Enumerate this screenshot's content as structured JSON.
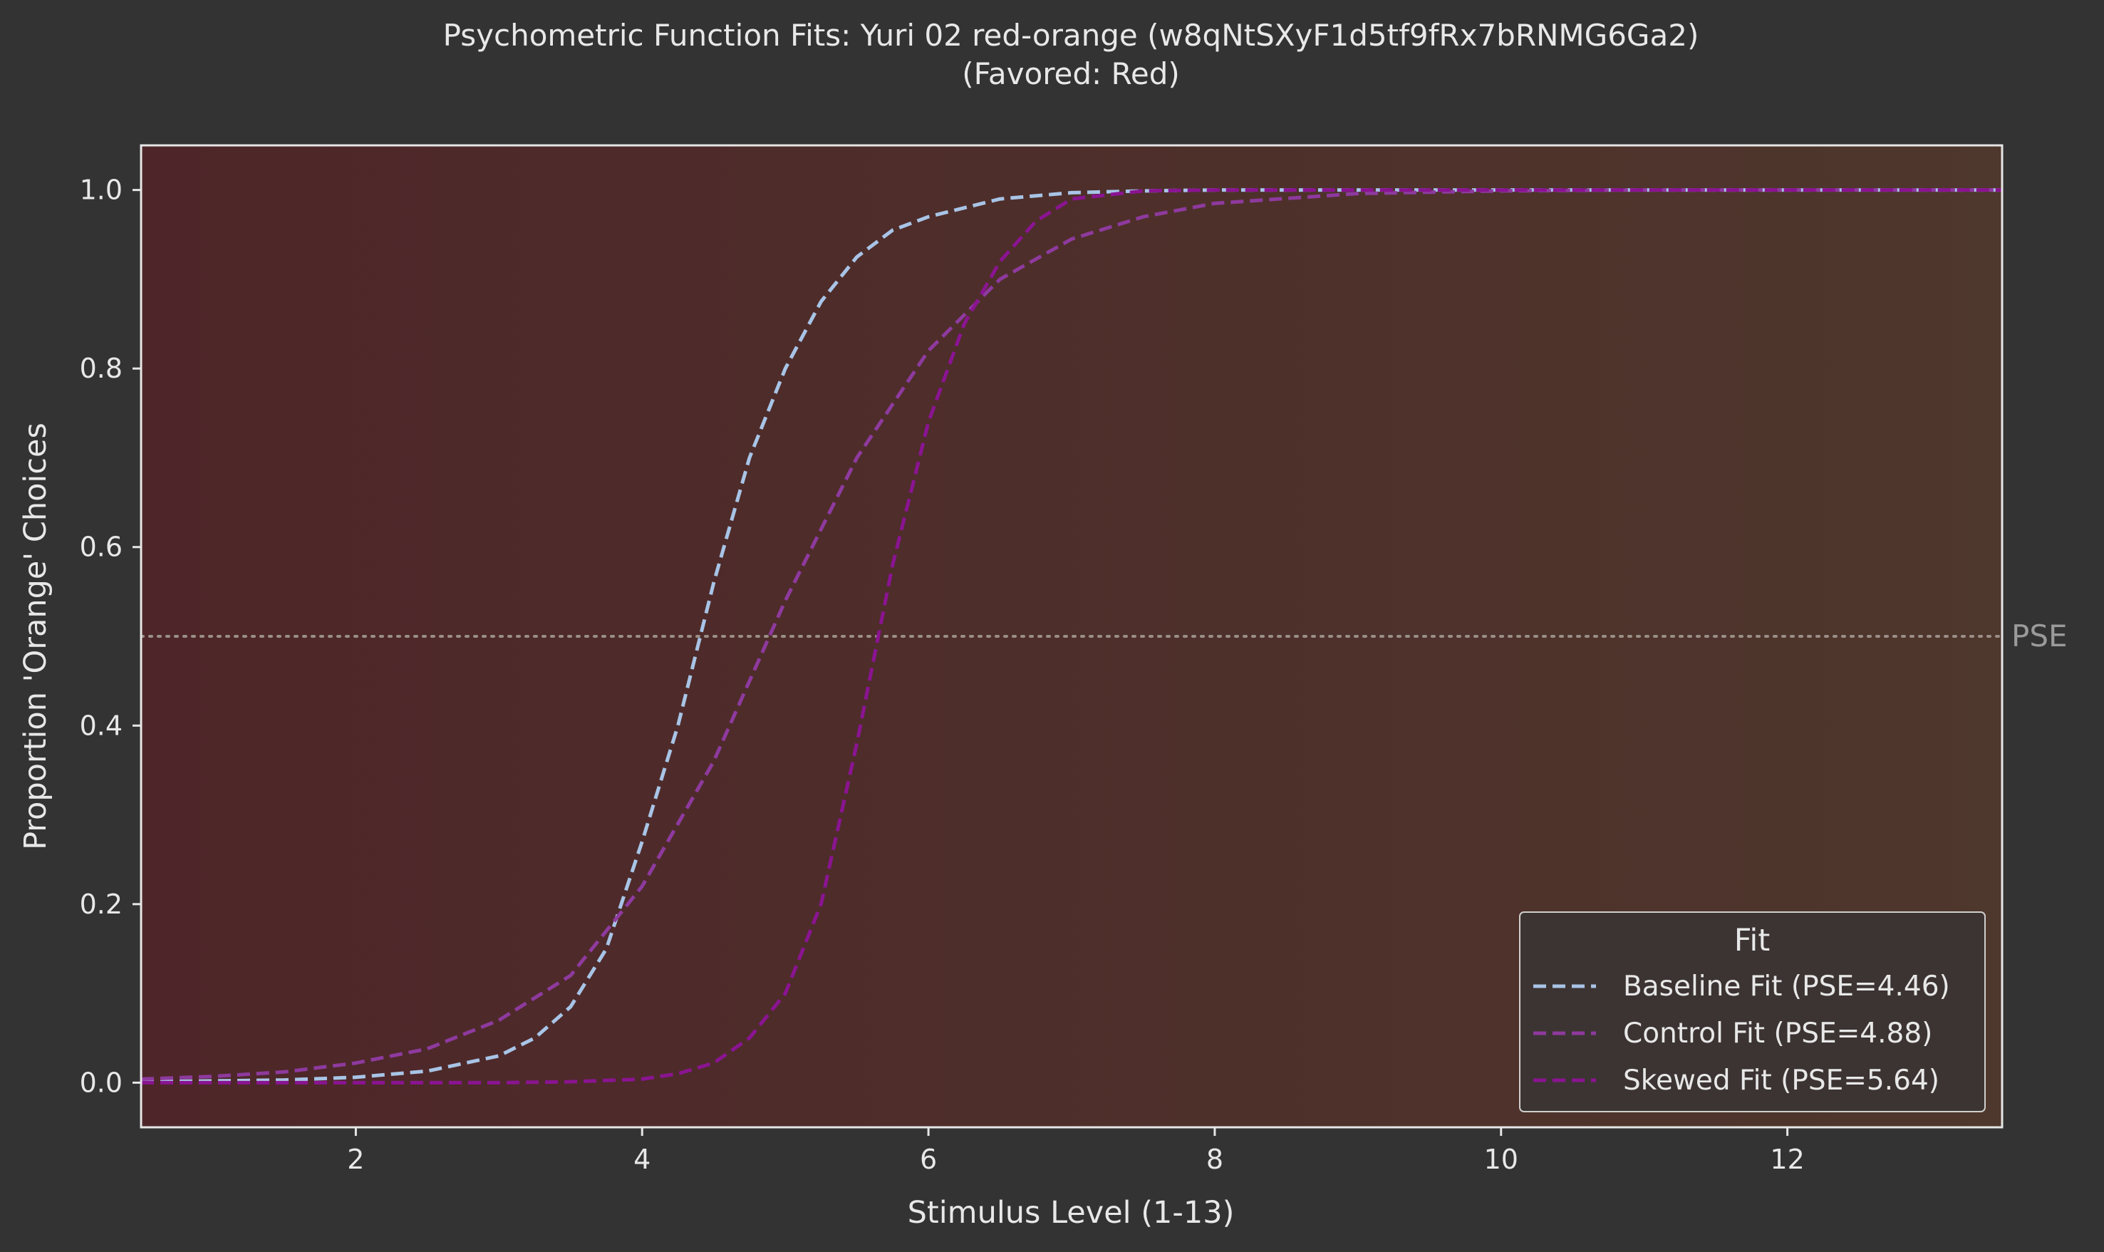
{
  "chart_data": {
    "type": "line",
    "title": "Psychometric Function Fits: Yuri 02 red-orange (w8qNtSXyF1d5tf9fRx7bRNMG6Ga2)",
    "subtitle": "(Favored: Red)",
    "xlabel": "Stimulus Level (1-13)",
    "ylabel": "Proportion 'Orange' Choices",
    "xlim": [
      0.5,
      13.5
    ],
    "ylim": [
      -0.05,
      1.05
    ],
    "xticks": [
      2,
      4,
      6,
      8,
      10,
      12
    ],
    "yticks": [
      0.0,
      0.2,
      0.4,
      0.6,
      0.8,
      1.0
    ],
    "xtick_labels": [
      "2",
      "4",
      "6",
      "8",
      "10",
      "12"
    ],
    "ytick_labels": [
      "0.0",
      "0.2",
      "0.4",
      "0.6",
      "0.8",
      "1.0"
    ],
    "grid": false,
    "legend_title": "Fit",
    "legend_position": "lower-right",
    "reference_line": {
      "y": 0.5,
      "label": "PSE",
      "color": "#9a8f86"
    },
    "background_gradient": [
      "#4e2629",
      "#4e372c"
    ],
    "series": [
      {
        "name": "Baseline Fit (PSE=4.46)",
        "color": "#a8c4e6",
        "x": [
          0.5,
          1,
          1.5,
          2,
          2.5,
          3,
          3.25,
          3.5,
          3.75,
          4,
          4.25,
          4.5,
          4.75,
          5,
          5.25,
          5.5,
          5.75,
          6,
          6.5,
          7,
          7.5,
          8,
          9,
          10,
          11,
          12,
          13,
          13.5
        ],
        "y": [
          0.001,
          0.002,
          0.003,
          0.006,
          0.013,
          0.03,
          0.05,
          0.085,
          0.15,
          0.27,
          0.4,
          0.56,
          0.7,
          0.8,
          0.875,
          0.925,
          0.955,
          0.97,
          0.99,
          0.997,
          0.999,
          1.0,
          1.0,
          1.0,
          1.0,
          1.0,
          1.0,
          1.0
        ]
      },
      {
        "name": "Control Fit (PSE=4.88)",
        "color": "#8e3a9e",
        "x": [
          0.5,
          1,
          1.5,
          2,
          2.5,
          3,
          3.5,
          4,
          4.5,
          5,
          5.5,
          6,
          6.5,
          7,
          7.5,
          8,
          9,
          10,
          11,
          12,
          13,
          13.5
        ],
        "y": [
          0.004,
          0.007,
          0.012,
          0.022,
          0.038,
          0.07,
          0.12,
          0.22,
          0.36,
          0.54,
          0.7,
          0.82,
          0.9,
          0.945,
          0.97,
          0.985,
          0.996,
          0.999,
          1.0,
          1.0,
          1.0,
          1.0
        ]
      },
      {
        "name": "Skewed Fit (PSE=5.64)",
        "color": "#8a1491",
        "x": [
          0.5,
          1,
          2,
          3,
          3.5,
          4,
          4.25,
          4.5,
          4.75,
          5,
          5.25,
          5.5,
          5.75,
          6,
          6.25,
          6.5,
          6.75,
          7,
          7.5,
          8,
          9,
          10,
          11,
          12,
          13,
          13.5
        ],
        "y": [
          0.0,
          0.0,
          0.0,
          0.0,
          0.001,
          0.004,
          0.01,
          0.022,
          0.05,
          0.1,
          0.2,
          0.38,
          0.58,
          0.74,
          0.85,
          0.92,
          0.965,
          0.99,
          0.999,
          1.0,
          1.0,
          1.0,
          1.0,
          1.0,
          1.0,
          1.0
        ]
      }
    ]
  }
}
